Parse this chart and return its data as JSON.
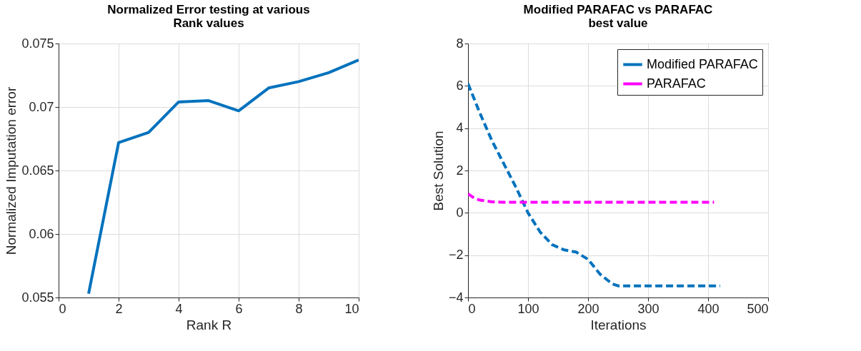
{
  "chart_data": [
    {
      "type": "line",
      "title": "Normalized Error testing at various\nRank values",
      "xlabel": "Rank R",
      "ylabel": "Normalized Imputation error",
      "x": [
        1,
        2,
        3,
        4,
        5,
        6,
        7,
        8,
        9,
        10
      ],
      "series": [
        {
          "color": "#0072bd",
          "values": [
            0.0553,
            0.0672,
            0.068,
            0.0704,
            0.0705,
            0.0697,
            0.0715,
            0.072,
            0.0727,
            0.0737
          ]
        }
      ],
      "xlim": [
        0,
        10
      ],
      "xticks": [
        0,
        2,
        4,
        6,
        8,
        10
      ],
      "ylim": [
        0.055,
        0.075
      ],
      "yticks": [
        0.055,
        {
          "value": 0.06,
          "label": "0.06"
        },
        0.065,
        {
          "value": 0.07,
          "label": "0.07"
        },
        0.075
      ],
      "grid": true
    },
    {
      "type": "line",
      "title": "Modified PARAFAC vs PARAFAC\nbest value",
      "xlabel": "Iterations",
      "ylabel": "Best Solution",
      "series": [
        {
          "name": "Modified PARAFAC",
          "color": "#0072bd",
          "line_style": "dashed",
          "x": [
            0,
            20,
            40,
            60,
            80,
            100,
            120,
            140,
            160,
            180,
            200,
            220,
            240,
            250,
            420
          ],
          "values": [
            6.1,
            4.7,
            3.4,
            2.3,
            1.2,
            0,
            -0.9,
            -1.5,
            -1.75,
            -1.85,
            -2.2,
            -2.9,
            -3.35,
            -3.45,
            -3.45
          ]
        },
        {
          "name": "PARAFAC",
          "color": "#ff00ff",
          "line_style": "dashed",
          "x": [
            0,
            10,
            20,
            40,
            60,
            410
          ],
          "values": [
            0.9,
            0.7,
            0.6,
            0.52,
            0.5,
            0.5
          ]
        }
      ],
      "xlim": [
        0,
        500
      ],
      "xticks": [
        0,
        100,
        200,
        300,
        400,
        500
      ],
      "ylim": [
        -4,
        8
      ],
      "yticks": [
        -4,
        -2,
        0,
        2,
        4,
        6,
        8
      ],
      "grid": true,
      "legend": "top right"
    }
  ]
}
